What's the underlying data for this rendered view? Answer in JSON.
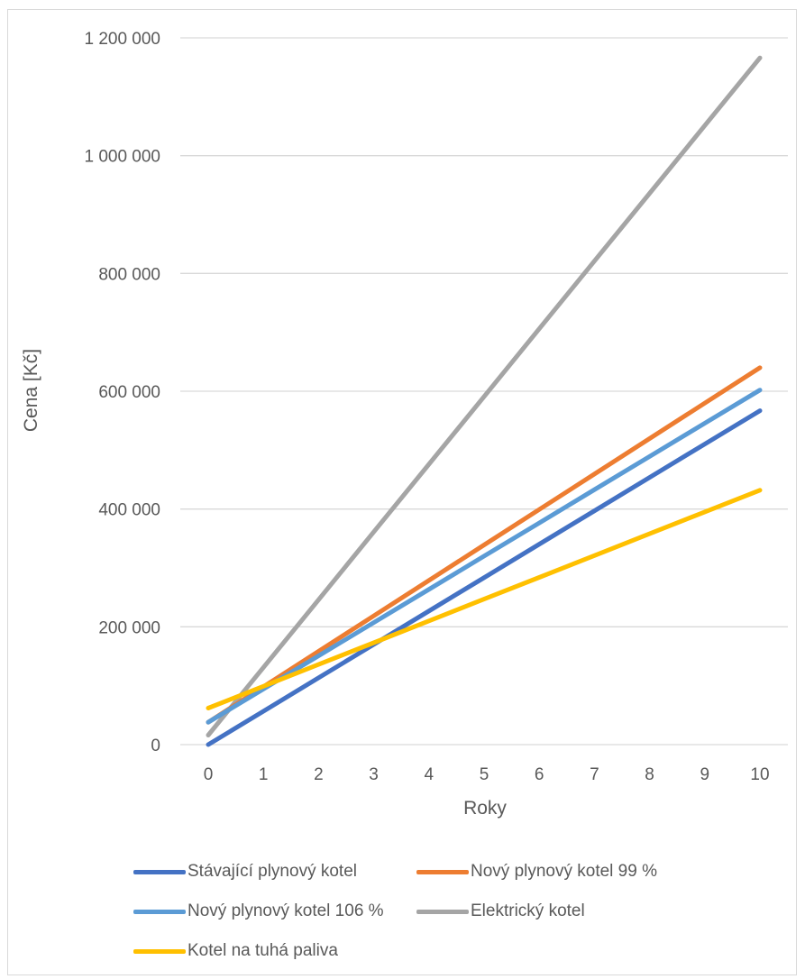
{
  "chart_data": {
    "type": "line",
    "title": "",
    "xlabel": "Roky",
    "ylabel": "Cena [Kč]",
    "x": [
      0,
      1,
      2,
      3,
      4,
      5,
      6,
      7,
      8,
      9,
      10
    ],
    "xlim": [
      0,
      10
    ],
    "ylim": [
      0,
      1200000
    ],
    "yticks": [
      0,
      200000,
      400000,
      600000,
      800000,
      1000000,
      1200000
    ],
    "ytick_labels": [
      "0",
      "200 000",
      "400 000",
      "600 000",
      "800 000",
      "1 000 000",
      "1 200 000"
    ],
    "xtick_labels": [
      "0",
      "1",
      "2",
      "3",
      "4",
      "5",
      "6",
      "7",
      "8",
      "9",
      "10"
    ],
    "grid": "horizontal",
    "legend_position": "bottom",
    "series": [
      {
        "name": "Stávající plynový kotel",
        "color": "#4472C4",
        "values": [
          0,
          56700,
          113400,
          170100,
          226800,
          283500,
          340200,
          396900,
          453600,
          510300,
          567000
        ]
      },
      {
        "name": "Nový plynový kotel 99 %",
        "color": "#ED7D31",
        "values": [
          38000,
          98200,
          158400,
          218600,
          278800,
          339000,
          399200,
          459400,
          519600,
          579800,
          640000
        ]
      },
      {
        "name": "Nový plynový kotel 106 %",
        "color": "#5B9BD5",
        "values": [
          38000,
          94400,
          150800,
          207200,
          263600,
          320000,
          376400,
          432800,
          489200,
          545600,
          602000
        ]
      },
      {
        "name": "Elektrický kotel",
        "color": "#A5A5A5",
        "values": [
          16000,
          131000,
          246000,
          361000,
          476000,
          591000,
          706000,
          821000,
          936000,
          1051000,
          1166000
        ]
      },
      {
        "name": "Kotel na tuhá paliva",
        "color": "#FFC000",
        "values": [
          62000,
          99000,
          136000,
          173000,
          210000,
          247000,
          284000,
          321000,
          358000,
          395000,
          432000
        ]
      }
    ]
  }
}
